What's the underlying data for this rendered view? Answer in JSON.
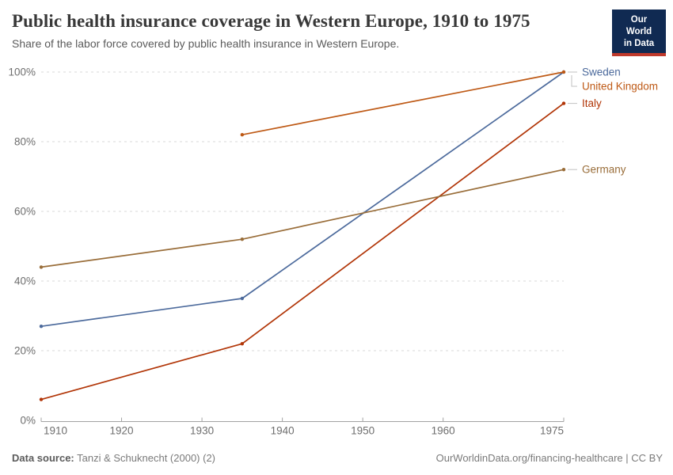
{
  "header": {
    "title": "Public health insurance coverage in Western Europe, 1910 to 1975",
    "subtitle": "Share of the labor force covered by public health insurance in Western Europe.",
    "logo": {
      "line1": "Our World",
      "line2": "in Data",
      "bg_color": "#102A52",
      "accent_color": "#C0392B"
    }
  },
  "chart_data": {
    "type": "line",
    "title": "Public health insurance coverage in Western Europe, 1910 to 1975",
    "xlabel": "",
    "ylabel": "",
    "xlim": [
      1910,
      1975
    ],
    "ylim": [
      0,
      100
    ],
    "grid": true,
    "gridline_style": "dashed",
    "legend_position": "right-end-labels",
    "xticks": [
      1910,
      1920,
      1930,
      1940,
      1950,
      1960,
      1975
    ],
    "yticks": [
      0,
      20,
      40,
      60,
      80,
      100
    ],
    "ytick_suffix": "%",
    "series": [
      {
        "name": "Sweden",
        "color": "#4C6A9C",
        "x": [
          1910,
          1935,
          1975
        ],
        "values": [
          27,
          35,
          100
        ],
        "label_dy": 0
      },
      {
        "name": "United Kingdom",
        "color": "#BE5915",
        "x": [
          1935,
          1975
        ],
        "values": [
          82,
          100
        ],
        "label_dy": 18
      },
      {
        "name": "Italy",
        "color": "#B13507",
        "x": [
          1910,
          1935,
          1975
        ],
        "values": [
          6,
          22,
          91
        ],
        "label_dy": 0
      },
      {
        "name": "Germany",
        "color": "#996D39",
        "x": [
          1910,
          1935,
          1975
        ],
        "values": [
          44,
          52,
          72
        ],
        "label_dy": 0
      }
    ],
    "style": {
      "grid_color": "#d9d9d9",
      "axis_color": "#a3a3a3",
      "tick_label_color": "#6e6e6e",
      "connector_color": "#c2c2c2"
    }
  },
  "footer": {
    "source_label": "Data source:",
    "source_value": "Tanzi & Schuknecht (2000) (2)",
    "link": "OurWorldinData.org/financing-healthcare | CC BY"
  }
}
